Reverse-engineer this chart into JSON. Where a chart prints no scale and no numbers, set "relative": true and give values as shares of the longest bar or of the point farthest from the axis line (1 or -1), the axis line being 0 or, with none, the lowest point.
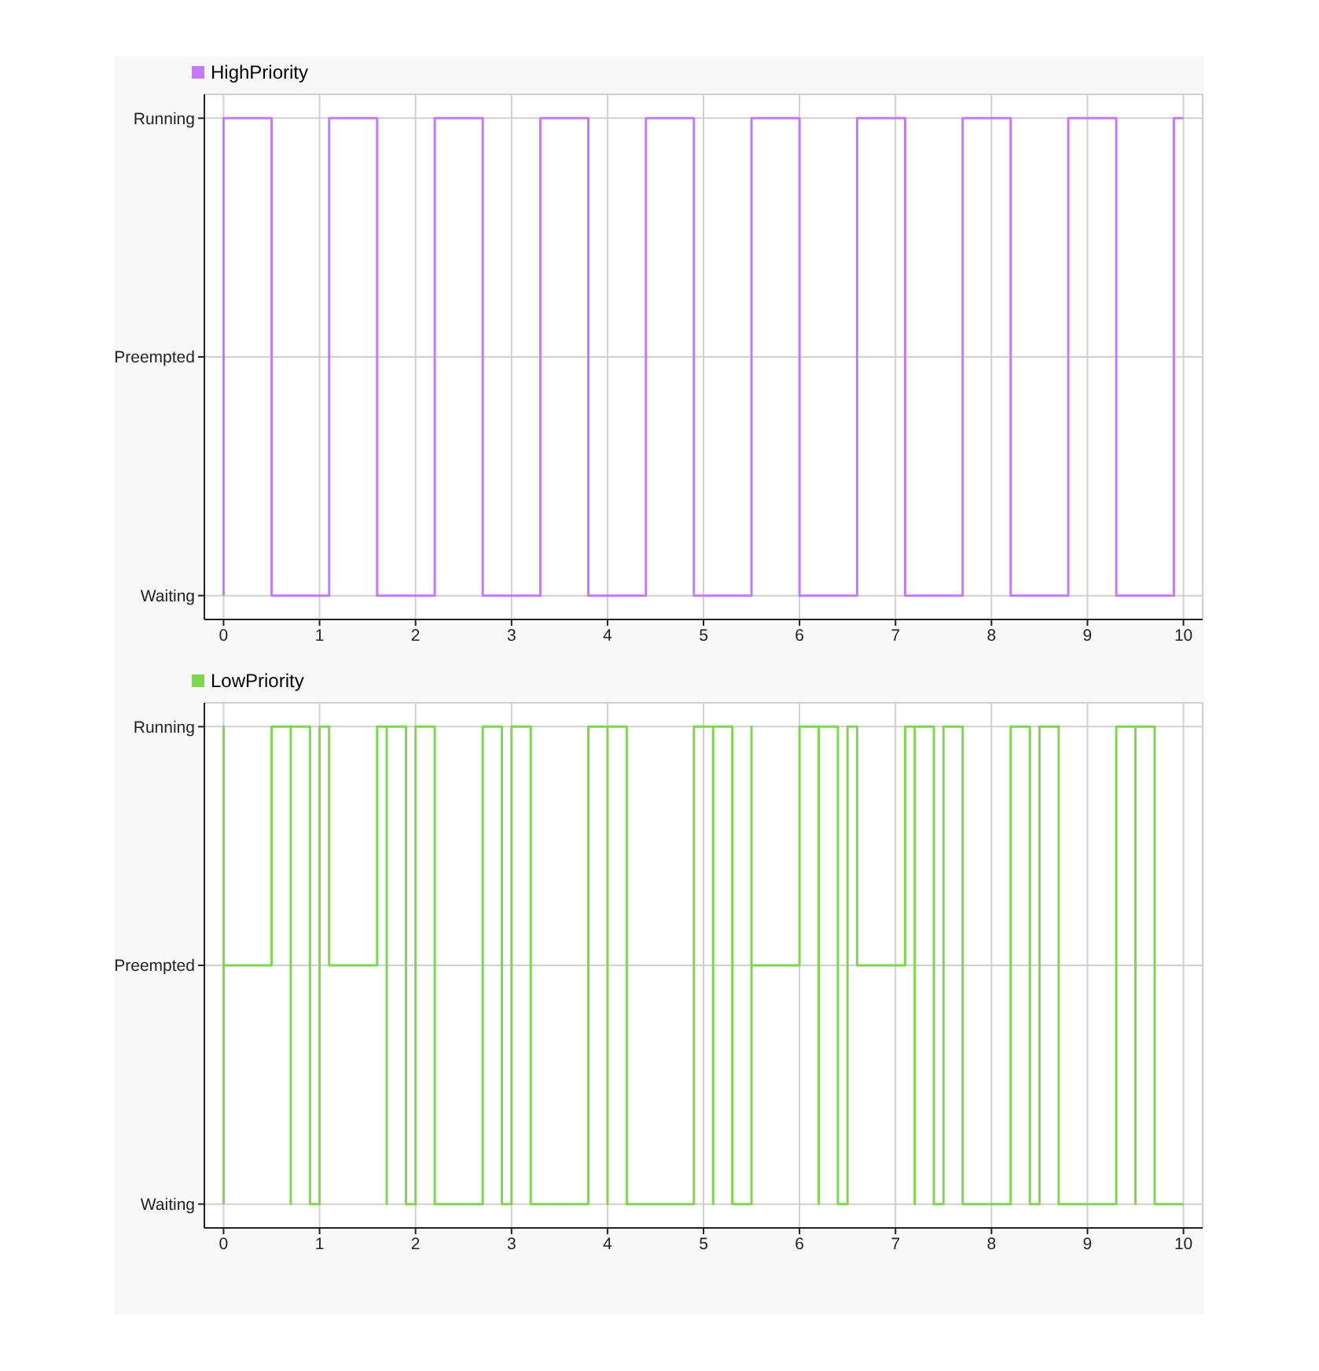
{
  "chart_data": [
    {
      "type": "step",
      "relative": true,
      "x": [
        0,
        0,
        0.5,
        1.1,
        1.6,
        2.2,
        2.7,
        3.3,
        3.8,
        4.4,
        4.9,
        5.5,
        6.0,
        6.6,
        7.1,
        7.7,
        8.2,
        8.8,
        9.3,
        9.9,
        10
      ],
      "y_categories": [
        "Running",
        "Preempted",
        "Waiting"
      ],
      "series": [
        {
          "name": "HighPriority",
          "color": "#c77af7",
          "values": [
            0,
            1,
            0,
            1,
            0,
            1,
            0,
            1,
            0,
            1,
            0,
            1,
            0,
            1,
            0,
            1,
            0,
            1,
            0,
            1,
            1
          ]
        }
      ],
      "xlim": [
        -0.2,
        10.2
      ],
      "xticks": [
        0,
        1,
        2,
        3,
        4,
        5,
        6,
        7,
        8,
        9,
        10
      ],
      "grid": true,
      "legend": "top left",
      "marker": "none",
      "line_style": "solid"
    },
    {
      "type": "step",
      "relative": true,
      "x": [
        0,
        0,
        0,
        0.5,
        0.7,
        0.7,
        0.7,
        0.9,
        1.0,
        1.1,
        1.6,
        1.7,
        1.7,
        1.7,
        1.9,
        2.0,
        2.2,
        2.7,
        2.9,
        3.0,
        3.2,
        3.8,
        4.0,
        4.0,
        4.0,
        4.2,
        4.9,
        5.1,
        5.1,
        5.1,
        5.3,
        5.5,
        5.5,
        5.5,
        6.0,
        6.2,
        6.2,
        6.2,
        6.4,
        6.5,
        6.6,
        7.1,
        7.2,
        7.2,
        7.2,
        7.4,
        7.5,
        7.7,
        8.2,
        8.4,
        8.5,
        8.7,
        9.3,
        9.5,
        9.5,
        9.5,
        9.7,
        10
      ],
      "y_categories": [
        "Running",
        "Preempted",
        "Waiting"
      ],
      "series": [
        {
          "name": "LowPriority",
          "color": "#7fd650",
          "values": [
            0,
            1,
            0.5,
            1,
            1,
            0,
            1,
            0,
            1,
            0.5,
            1,
            1,
            0,
            1,
            0,
            1,
            0,
            1,
            0,
            1,
            0,
            1,
            1,
            0,
            1,
            0,
            1,
            1,
            0,
            1,
            0,
            0,
            1,
            0.5,
            1,
            1,
            0,
            1,
            0,
            1,
            0.5,
            1,
            1,
            0,
            1,
            0,
            1,
            0,
            1,
            0,
            1,
            0,
            1,
            1,
            0,
            1,
            0,
            0
          ]
        }
      ],
      "xlim": [
        -0.2,
        10.2
      ],
      "xticks": [
        0,
        1,
        2,
        3,
        4,
        5,
        6,
        7,
        8,
        9,
        10
      ],
      "grid": true,
      "legend": "top left",
      "marker": "none",
      "line_style": "solid"
    }
  ]
}
